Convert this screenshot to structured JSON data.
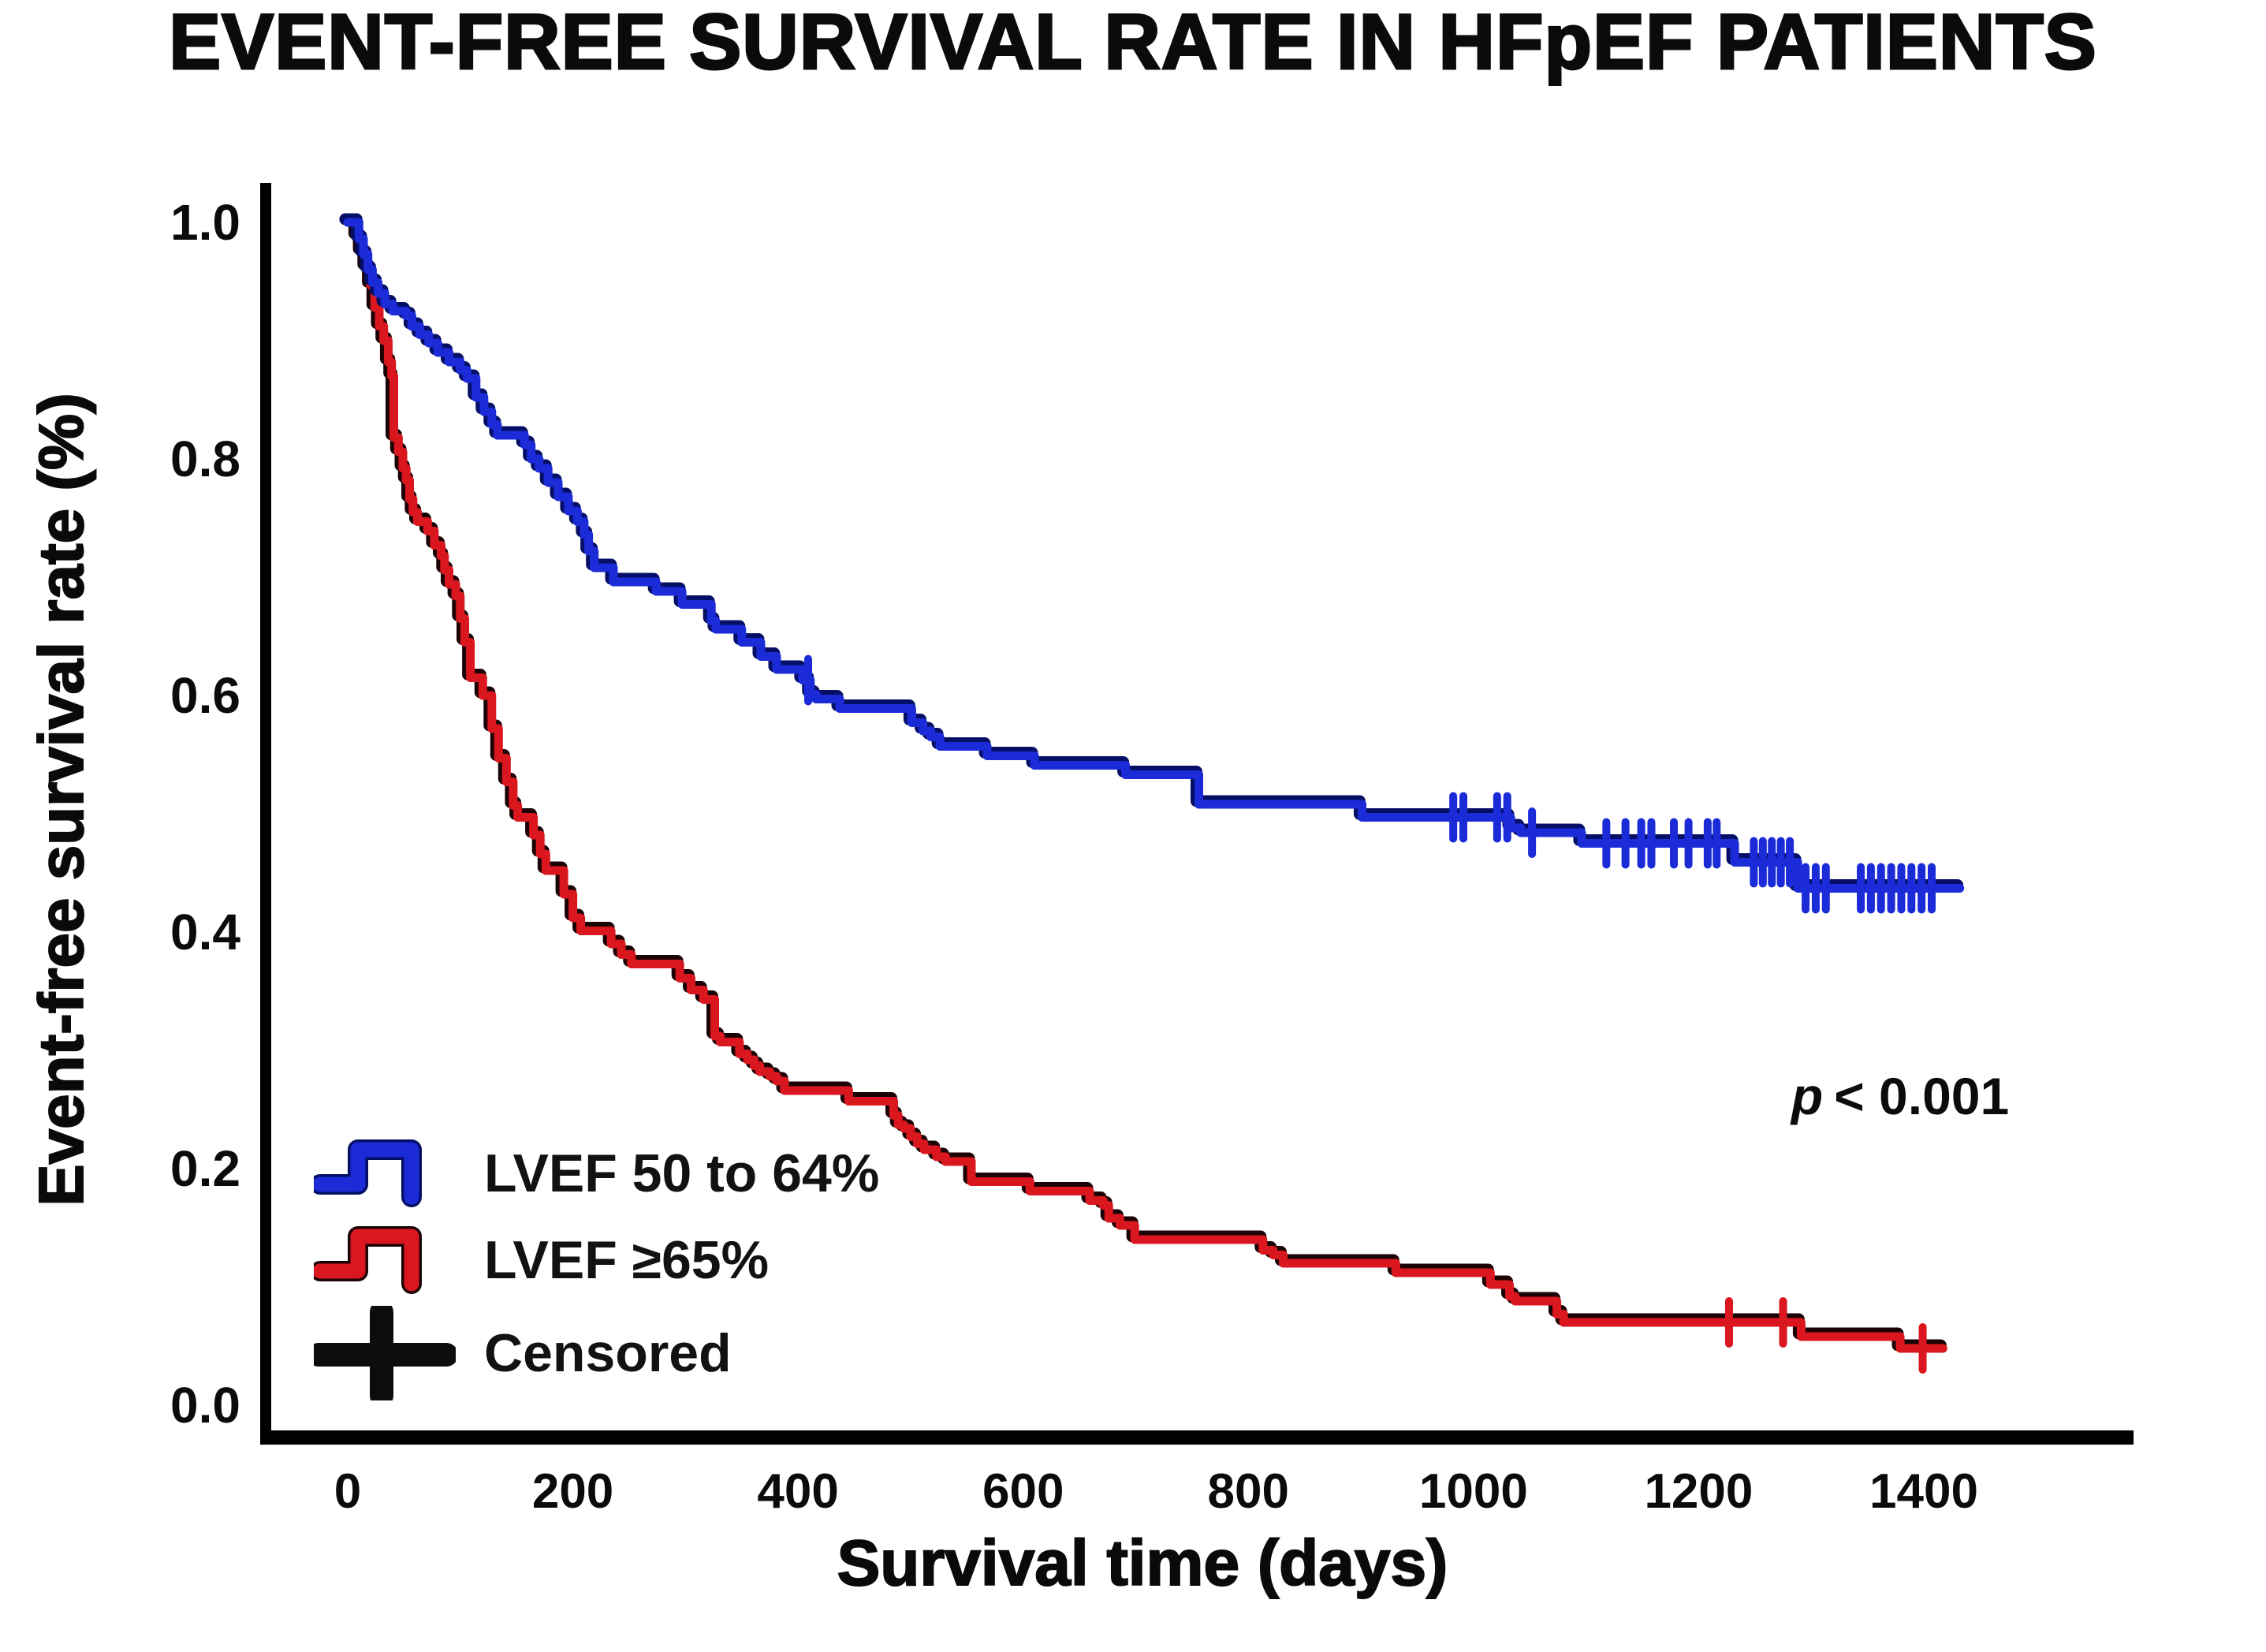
{
  "header": {
    "title": "EVENT-FREE SURVIVAL RATE IN HFpEF PATIENTS"
  },
  "annotation": {
    "p_italic": "p",
    "p_rest": "< 0.001"
  },
  "legend": {
    "items": [
      {
        "label": "LVEF 50 to 64%",
        "color": "#1b2bd8",
        "type": "step-line"
      },
      {
        "label": "LVEF ≥65%",
        "color": "#da161e",
        "type": "step-line"
      },
      {
        "label": "Censored",
        "color": "#0d0d0d",
        "type": "plus"
      }
    ]
  },
  "colors": {
    "blue": "#1b2bd8",
    "blue_shadow": "#050f66",
    "red": "#da161e",
    "red_shadow": "#1c0305",
    "axis": "#000000",
    "text": "#0b0b0b",
    "background": "#ffffff"
  },
  "chart_data": {
    "type": "line",
    "subtype": "kaplan-meier-step",
    "title": "EVENT-FREE SURVIVAL RATE IN HFpEF PATIENTS",
    "xlabel": "Survival time (days)",
    "ylabel": "Event-free survival rate (%)",
    "xlim": [
      0,
      1585
    ],
    "ylim": [
      0.0,
      1.05
    ],
    "grid": false,
    "legend_position": "lower-left-inside",
    "p_value_annotation": "p < 0.001",
    "x_ticks": [
      0,
      200,
      400,
      600,
      800,
      1000,
      1200,
      1400
    ],
    "x_tick_labels": [
      "0",
      "200",
      "400",
      "600",
      "800",
      "1000",
      "1200",
      "1400"
    ],
    "y_ticks": [
      1.0,
      0.8,
      0.6,
      0.4,
      0.2,
      0.0
    ],
    "y_tick_labels": [
      "1.0",
      "0.8",
      "0.6",
      "0.4",
      "0.2",
      "0.0"
    ],
    "series": [
      {
        "name": "LVEF 50 to 64%",
        "color": "#1b2bd8",
        "end_day": 1432,
        "steps": [
          [
            0,
            1.0
          ],
          [
            10,
            0.986
          ],
          [
            14,
            0.973
          ],
          [
            18,
            0.96
          ],
          [
            22,
            0.949
          ],
          [
            27,
            0.94
          ],
          [
            33,
            0.931
          ],
          [
            40,
            0.925
          ],
          [
            52,
            0.921
          ],
          [
            57,
            0.912
          ],
          [
            64,
            0.905
          ],
          [
            72,
            0.898
          ],
          [
            80,
            0.89
          ],
          [
            90,
            0.882
          ],
          [
            100,
            0.875
          ],
          [
            106,
            0.868
          ],
          [
            114,
            0.852
          ],
          [
            121,
            0.84
          ],
          [
            128,
            0.829
          ],
          [
            133,
            0.82
          ],
          [
            157,
            0.812
          ],
          [
            163,
            0.8
          ],
          [
            170,
            0.792
          ],
          [
            178,
            0.78
          ],
          [
            187,
            0.768
          ],
          [
            196,
            0.756
          ],
          [
            204,
            0.747
          ],
          [
            210,
            0.736
          ],
          [
            214,
            0.722
          ],
          [
            219,
            0.708
          ],
          [
            236,
            0.696
          ],
          [
            274,
            0.688
          ],
          [
            297,
            0.677
          ],
          [
            323,
            0.663
          ],
          [
            327,
            0.656
          ],
          [
            350,
            0.645
          ],
          [
            367,
            0.633
          ],
          [
            381,
            0.622
          ],
          [
            404,
            0.613
          ],
          [
            411,
            0.601
          ],
          [
            416,
            0.597
          ],
          [
            437,
            0.589
          ],
          [
            501,
            0.577
          ],
          [
            511,
            0.57
          ],
          [
            518,
            0.565
          ],
          [
            526,
            0.557
          ],
          [
            568,
            0.549
          ],
          [
            610,
            0.541
          ],
          [
            691,
            0.533
          ],
          [
            756,
            0.508
          ],
          [
            901,
            0.497
          ],
          [
            1033,
            0.488
          ],
          [
            1042,
            0.484
          ],
          [
            1096,
            0.475
          ],
          [
            1232,
            0.459
          ],
          [
            1288,
            0.437
          ]
        ],
        "censored_days": [
          409,
          982,
          991,
          1021,
          1030,
          1052,
          1118,
          1135,
          1149,
          1158,
          1178,
          1191,
          1208,
          1216,
          1249,
          1257,
          1265,
          1273,
          1281,
          1295,
          1304,
          1313,
          1344,
          1353,
          1362,
          1371,
          1380,
          1389,
          1398,
          1407
        ]
      },
      {
        "name": "LVEF ≥65%",
        "color": "#da161e",
        "end_day": 1417,
        "steps": [
          [
            0,
            1.0
          ],
          [
            8,
            0.988
          ],
          [
            12,
            0.975
          ],
          [
            16,
            0.962
          ],
          [
            20,
            0.947
          ],
          [
            24,
            0.928
          ],
          [
            28,
            0.912
          ],
          [
            32,
            0.9
          ],
          [
            36,
            0.882
          ],
          [
            39,
            0.87
          ],
          [
            41,
            0.818
          ],
          [
            45,
            0.806
          ],
          [
            49,
            0.792
          ],
          [
            52,
            0.782
          ],
          [
            55,
            0.766
          ],
          [
            58,
            0.755
          ],
          [
            62,
            0.747
          ],
          [
            71,
            0.739
          ],
          [
            77,
            0.727
          ],
          [
            83,
            0.718
          ],
          [
            86,
            0.706
          ],
          [
            90,
            0.694
          ],
          [
            96,
            0.684
          ],
          [
            100,
            0.665
          ],
          [
            104,
            0.645
          ],
          [
            109,
            0.615
          ],
          [
            120,
            0.6
          ],
          [
            128,
            0.572
          ],
          [
            134,
            0.547
          ],
          [
            141,
            0.527
          ],
          [
            147,
            0.507
          ],
          [
            151,
            0.497
          ],
          [
            165,
            0.482
          ],
          [
            171,
            0.466
          ],
          [
            176,
            0.452
          ],
          [
            192,
            0.432
          ],
          [
            200,
            0.412
          ],
          [
            207,
            0.401
          ],
          [
            234,
            0.39
          ],
          [
            243,
            0.381
          ],
          [
            252,
            0.373
          ],
          [
            295,
            0.361
          ],
          [
            305,
            0.351
          ],
          [
            316,
            0.343
          ],
          [
            326,
            0.312
          ],
          [
            331,
            0.307
          ],
          [
            348,
            0.297
          ],
          [
            355,
            0.292
          ],
          [
            361,
            0.287
          ],
          [
            366,
            0.282
          ],
          [
            375,
            0.278
          ],
          [
            381,
            0.274
          ],
          [
            388,
            0.266
          ],
          [
            445,
            0.257
          ],
          [
            485,
            0.245
          ],
          [
            489,
            0.237
          ],
          [
            494,
            0.234
          ],
          [
            500,
            0.227
          ],
          [
            506,
            0.221
          ],
          [
            512,
            0.216
          ],
          [
            523,
            0.21
          ],
          [
            531,
            0.206
          ],
          [
            554,
            0.189
          ],
          [
            606,
            0.181
          ],
          [
            659,
            0.173
          ],
          [
            671,
            0.169
          ],
          [
            676,
            0.158
          ],
          [
            686,
            0.152
          ],
          [
            699,
            0.14
          ],
          [
            813,
            0.131
          ],
          [
            822,
            0.127
          ],
          [
            831,
            0.12
          ],
          [
            931,
            0.112
          ],
          [
            1015,
            0.102
          ],
          [
            1032,
            0.092
          ],
          [
            1037,
            0.088
          ],
          [
            1074,
            0.077
          ],
          [
            1080,
            0.07
          ],
          [
            1291,
            0.058
          ],
          [
            1379,
            0.048
          ]
        ],
        "censored_days": [
          1227,
          1275,
          1399
        ]
      }
    ]
  }
}
